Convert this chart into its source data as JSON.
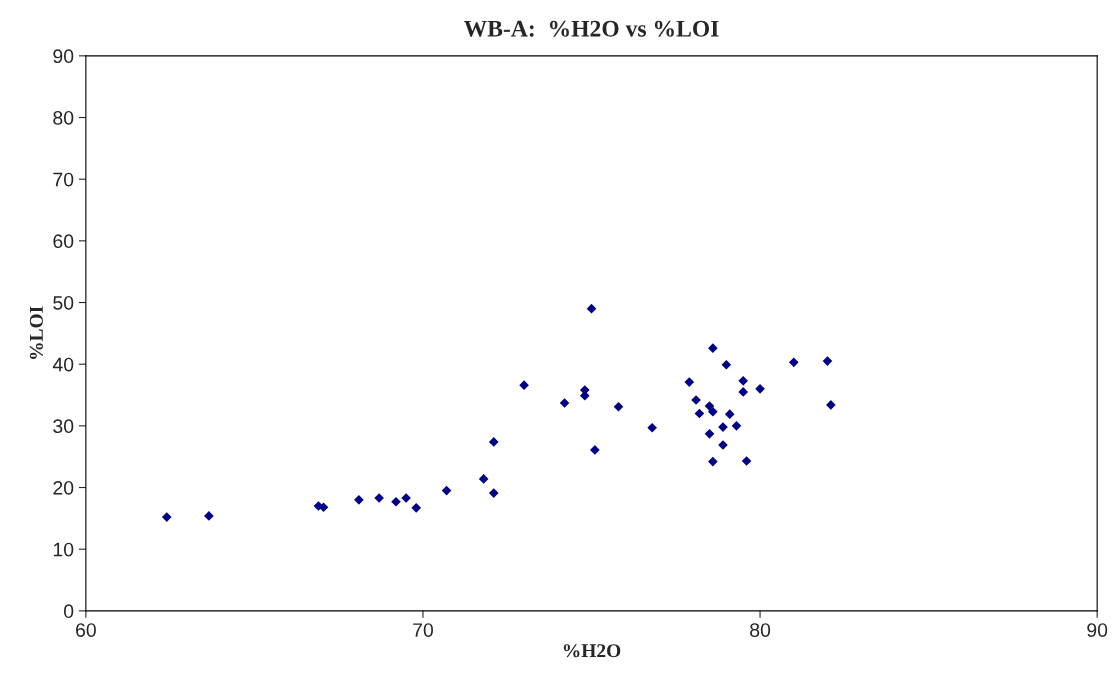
{
  "chart_data": {
    "type": "scatter",
    "title": "WB-A:  %H2O vs %LOI",
    "xlabel": "%H2O",
    "ylabel": "%LOI",
    "series": [
      {
        "color": "#000080",
        "marker": "diamond",
        "x": [
          62.4,
          63.65,
          66.9,
          67.05,
          68.1,
          68.7,
          69.2,
          69.5,
          69.8,
          70.7,
          71.8,
          72.1,
          72.1,
          73.0,
          74.2,
          74.8,
          74.8,
          75.0,
          75.1,
          75.8,
          76.8,
          77.9,
          78.1,
          78.2,
          78.5,
          78.6,
          78.5,
          78.6,
          78.6,
          78.9,
          78.9,
          79.0,
          79.1,
          79.3,
          79.5,
          79.5,
          79.6,
          80.0,
          81.0,
          82.0,
          82.1
        ],
        "values": [
          15.2,
          15.4,
          17.0,
          16.8,
          18.0,
          18.3,
          17.7,
          18.3,
          16.7,
          19.5,
          21.4,
          19.1,
          27.4,
          36.6,
          33.7,
          35.8,
          34.9,
          49.0,
          26.1,
          33.1,
          29.7,
          37.1,
          34.2,
          32.0,
          33.2,
          32.3,
          28.7,
          42.6,
          24.2,
          26.9,
          29.8,
          39.9,
          31.9,
          30.0,
          37.3,
          35.5,
          24.3,
          36.0,
          40.3,
          40.5,
          33.4
        ]
      }
    ],
    "xlim": [
      60,
      90
    ],
    "xticks": [
      60,
      70,
      80,
      90
    ],
    "ylim": [
      0,
      90
    ],
    "yticks": [
      0,
      10,
      20,
      30,
      40,
      50,
      60,
      70,
      80,
      90
    ],
    "grid": false,
    "legend": false
  }
}
